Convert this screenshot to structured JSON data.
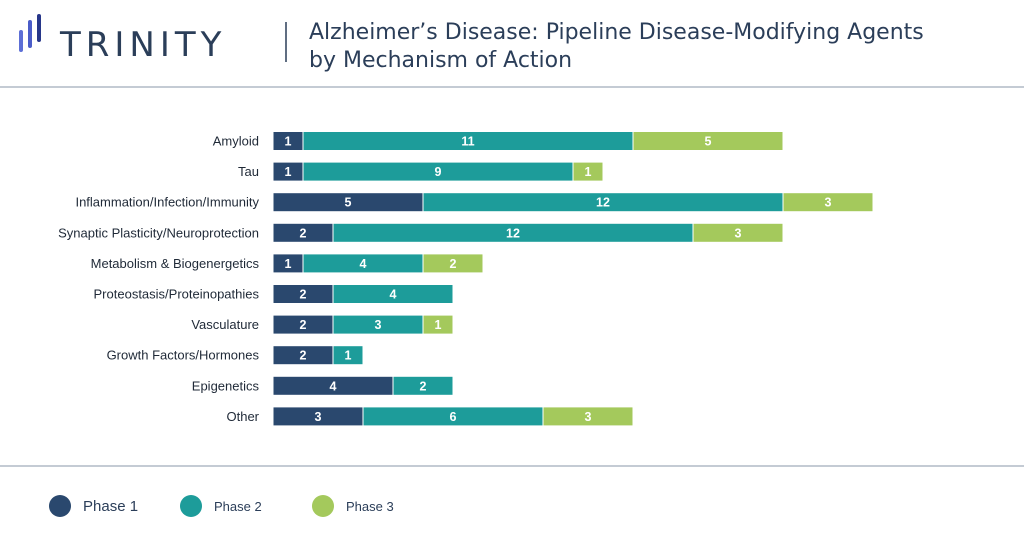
{
  "header": {
    "brand": "TRINITY",
    "title_line1": "Alzheimer’s Disease: Pipeline Disease-Modifying Agents",
    "title_line2": "by Mechanism of Action"
  },
  "colors": {
    "brand_text": "#2b3e59",
    "title_text": "#2b3e59",
    "phase1": "#2a486e",
    "phase2": "#1d9c9a",
    "phase3": "#a4c95c",
    "divider": "#8a97a8",
    "logo_bar_light": "#5d6fd6",
    "logo_bar_dark": "#27378a"
  },
  "legend": [
    {
      "label": "Phase 1",
      "color_key": "phase1"
    },
    {
      "label": "Phase 2",
      "color_key": "phase2"
    },
    {
      "label": "Phase 3",
      "color_key": "phase3"
    }
  ],
  "chart_data": {
    "type": "bar",
    "orientation": "horizontal",
    "stacked": true,
    "categories": [
      "Amyloid",
      "Tau",
      "Inflammation/Infection/Immunity",
      "Synaptic Plasticity/Neuroprotection",
      "Metabolism & Biogenergetics",
      "Proteostasis/Proteinopathies",
      "Vasculature",
      "Growth Factors/Hormones",
      "Epigenetics",
      "Other"
    ],
    "series": [
      {
        "name": "Phase 1",
        "values": [
          1,
          1,
          5,
          2,
          1,
          2,
          2,
          2,
          4,
          3
        ]
      },
      {
        "name": "Phase 2",
        "values": [
          11,
          9,
          12,
          12,
          4,
          4,
          3,
          1,
          2,
          6
        ]
      },
      {
        "name": "Phase 3",
        "values": [
          5,
          1,
          3,
          3,
          2,
          0,
          1,
          0,
          0,
          3
        ]
      }
    ],
    "title": "Alzheimer’s Disease: Pipeline Disease-Modifying Agents by Mechanism of Action",
    "xlabel": "",
    "ylabel": "",
    "xlim": [
      0,
      20
    ],
    "grid": false,
    "data_labels": true,
    "legend_position": "bottom"
  }
}
